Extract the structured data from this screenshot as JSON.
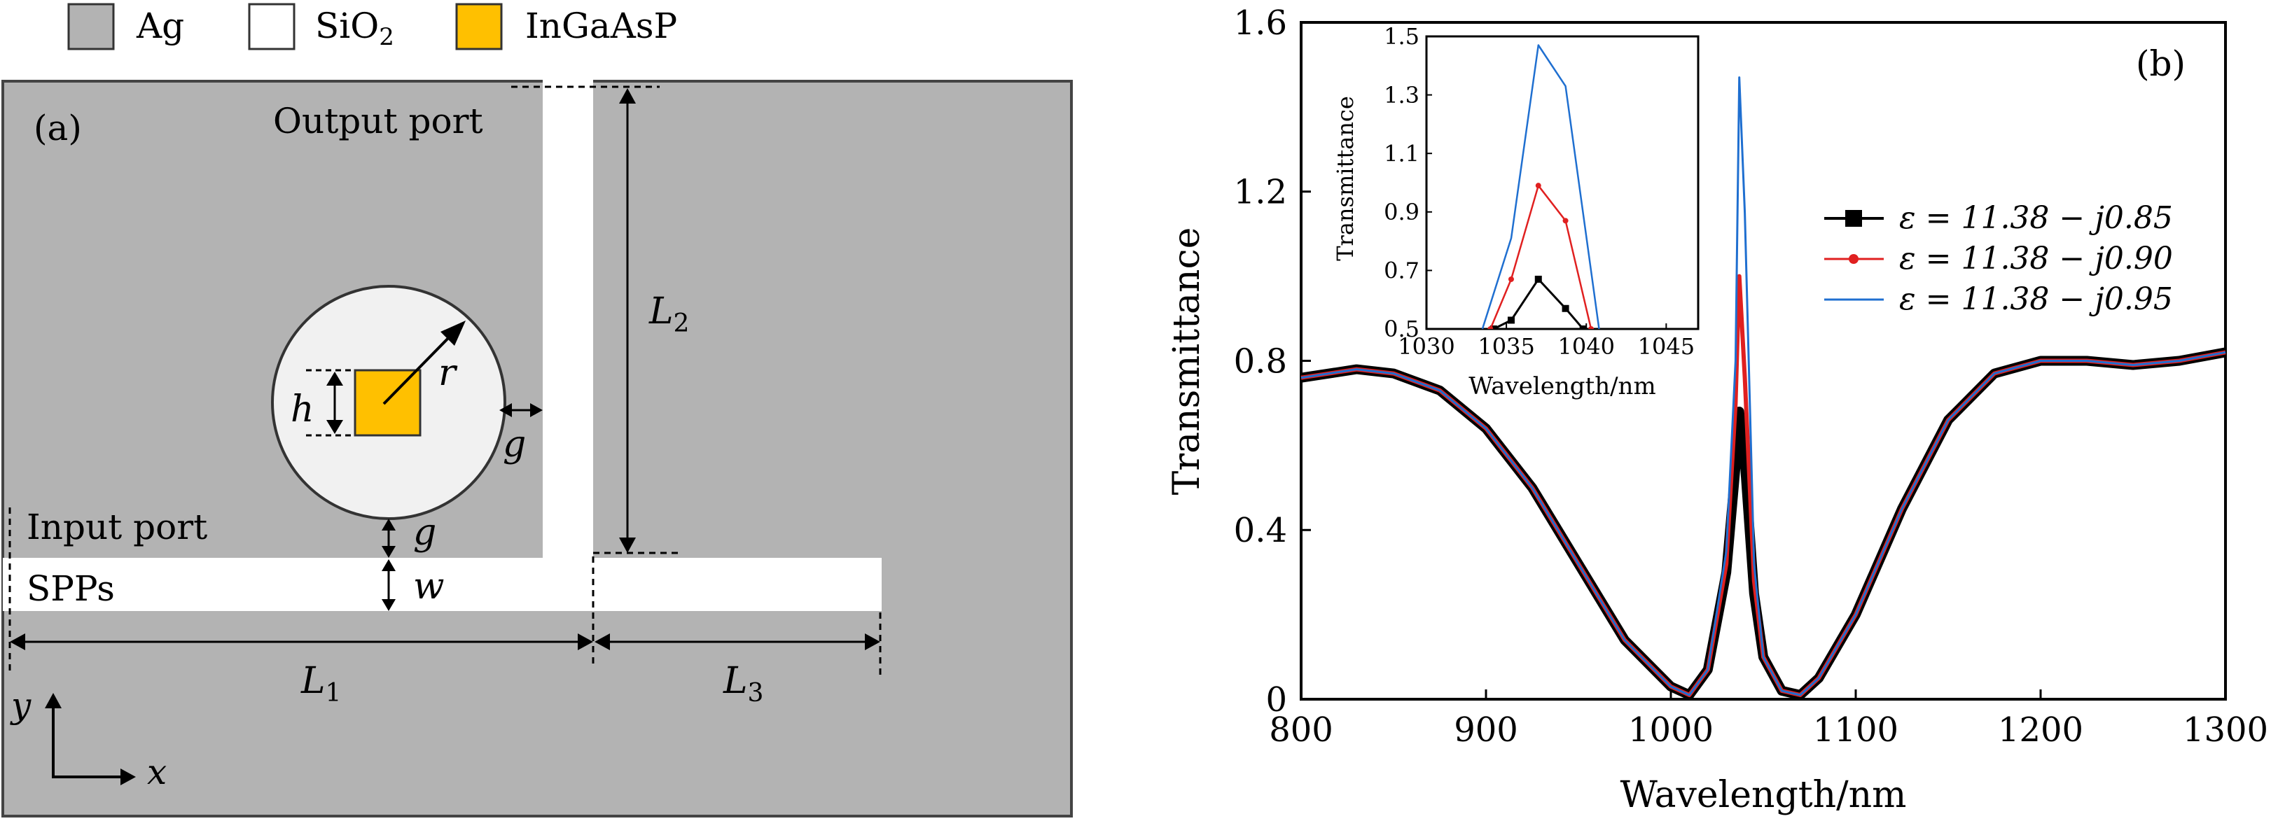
{
  "panel_a": {
    "label": "(a)",
    "legend": [
      {
        "name": "Ag",
        "color": "#b3b3b3"
      },
      {
        "name": "SiO2",
        "color": "#ffffff"
      },
      {
        "name": "InGaAsP",
        "color": "#ffc000"
      }
    ],
    "output_port": "Output port",
    "input_port": "Input port",
    "spps": "SPPs",
    "labels": {
      "L1": "L",
      "L1_sub": "1",
      "L2": "L",
      "L2_sub": "2",
      "L3": "L",
      "L3_sub": "3",
      "r": "r",
      "h": "h",
      "g": "g",
      "w": "w",
      "x": "x",
      "y": "y"
    }
  },
  "chart_data": [
    {
      "type": "line",
      "panel_label": "(b)",
      "xlabel": "Wavelength/nm",
      "ylabel": "Transmittance",
      "xlim": [
        800,
        1300
      ],
      "ylim": [
        0,
        1.6
      ],
      "xticks": [
        800,
        900,
        1000,
        1100,
        1200,
        1300
      ],
      "yticks": [
        0,
        0.4,
        0.8,
        1.2,
        1.6
      ],
      "ytick_labels": [
        "0",
        "0.4",
        "0.8",
        "1.2",
        "1.6"
      ],
      "legend_position": "right",
      "series": [
        {
          "name": "ε = 11.38 − j0.85",
          "color": "#000000",
          "marker": "square",
          "x": [
            800,
            830,
            850,
            875,
            900,
            925,
            950,
            975,
            1000,
            1010,
            1020,
            1030,
            1035,
            1037,
            1040,
            1045,
            1050,
            1060,
            1070,
            1080,
            1100,
            1125,
            1150,
            1175,
            1200,
            1225,
            1250,
            1275,
            1300
          ],
          "y": [
            0.76,
            0.78,
            0.77,
            0.73,
            0.64,
            0.5,
            0.32,
            0.14,
            0.03,
            0.01,
            0.07,
            0.3,
            0.55,
            0.68,
            0.56,
            0.25,
            0.1,
            0.02,
            0.01,
            0.05,
            0.2,
            0.45,
            0.66,
            0.77,
            0.8,
            0.8,
            0.79,
            0.8,
            0.82
          ]
        },
        {
          "name": "ε = 11.38 − j0.90",
          "color": "#e02020",
          "marker": "dot",
          "x": [
            800,
            830,
            850,
            875,
            900,
            925,
            950,
            975,
            1000,
            1010,
            1020,
            1030,
            1035,
            1037,
            1040,
            1045,
            1050,
            1060,
            1070,
            1080,
            1100,
            1125,
            1150,
            1175,
            1200,
            1225,
            1250,
            1275,
            1300
          ],
          "y": [
            0.76,
            0.78,
            0.77,
            0.73,
            0.64,
            0.5,
            0.32,
            0.14,
            0.03,
            0.01,
            0.07,
            0.32,
            0.7,
            1.0,
            0.76,
            0.28,
            0.1,
            0.02,
            0.01,
            0.05,
            0.2,
            0.45,
            0.66,
            0.77,
            0.8,
            0.8,
            0.79,
            0.8,
            0.82
          ]
        },
        {
          "name": "ε = 11.38 − j0.95",
          "color": "#1f6fd0",
          "marker": "none",
          "x": [
            800,
            830,
            850,
            875,
            900,
            925,
            950,
            975,
            1000,
            1010,
            1020,
            1030,
            1035,
            1037,
            1040,
            1045,
            1050,
            1060,
            1070,
            1080,
            1100,
            1125,
            1150,
            1175,
            1200,
            1225,
            1250,
            1275,
            1300
          ],
          "y": [
            0.76,
            0.78,
            0.77,
            0.73,
            0.64,
            0.5,
            0.32,
            0.14,
            0.03,
            0.01,
            0.07,
            0.35,
            0.8,
            1.47,
            1.15,
            0.32,
            0.1,
            0.02,
            0.01,
            0.05,
            0.2,
            0.45,
            0.66,
            0.77,
            0.8,
            0.8,
            0.79,
            0.8,
            0.82
          ]
        }
      ]
    },
    {
      "type": "line",
      "role": "inset",
      "xlabel": "Wavelength/nm",
      "ylabel": "Transmittance",
      "xlim": [
        1030,
        1047
      ],
      "ylim": [
        0.5,
        1.5
      ],
      "xticks": [
        1030,
        1035,
        1040,
        1045
      ],
      "yticks": [
        0.5,
        0.7,
        0.9,
        1.1,
        1.3,
        1.5
      ],
      "series": [
        {
          "name": "ε = 11.38 − j0.85",
          "color": "#000000",
          "x": [
            1034.2,
            1035.3,
            1037.0,
            1038.7,
            1039.8
          ],
          "y": [
            0.5,
            0.53,
            0.67,
            0.57,
            0.5
          ]
        },
        {
          "name": "ε = 11.38 − j0.90",
          "color": "#e02020",
          "x": [
            1034.0,
            1035.3,
            1037.0,
            1038.7,
            1040.3
          ],
          "y": [
            0.5,
            0.67,
            0.99,
            0.87,
            0.5
          ]
        },
        {
          "name": "ε = 11.38 − j0.95",
          "color": "#1f6fd0",
          "x": [
            1033.5,
            1035.3,
            1037.0,
            1038.7,
            1040.8
          ],
          "y": [
            0.5,
            0.81,
            1.47,
            1.33,
            0.5
          ]
        }
      ]
    }
  ]
}
